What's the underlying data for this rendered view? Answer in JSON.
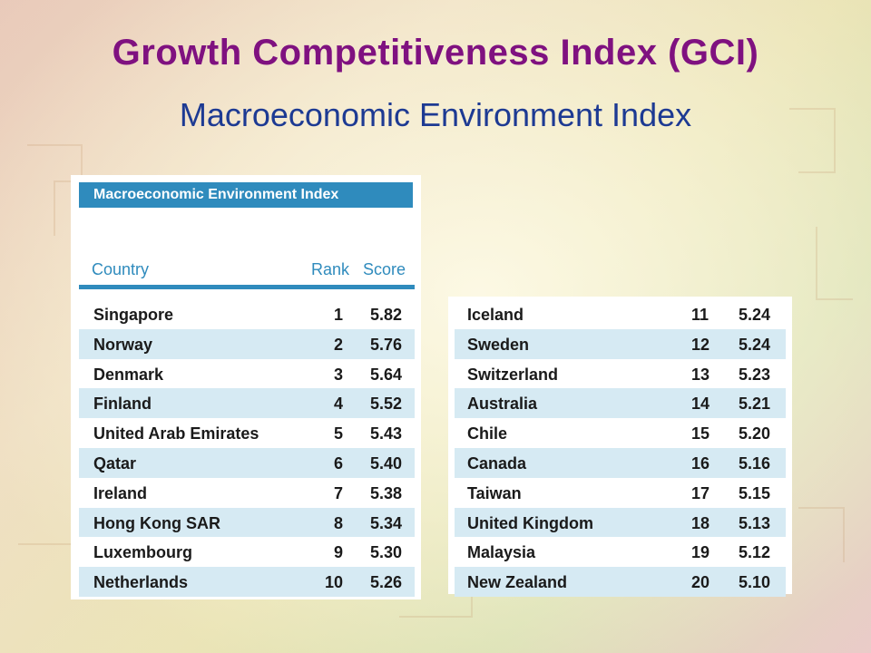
{
  "slide": {
    "title": "Growth Competitiveness Index (GCI)",
    "subtitle": "Macroeconomic Environment Index"
  },
  "table": {
    "header": "Macroeconomic Environment Index",
    "columns": [
      "Country",
      "Rank",
      "Score"
    ],
    "rows_left": [
      {
        "country": "Singapore",
        "rank": "1",
        "score": "5.82"
      },
      {
        "country": "Norway",
        "rank": "2",
        "score": "5.76"
      },
      {
        "country": "Denmark",
        "rank": "3",
        "score": "5.64"
      },
      {
        "country": "Finland",
        "rank": "4",
        "score": "5.52"
      },
      {
        "country": "United Arab Emirates",
        "rank": "5",
        "score": "5.43"
      },
      {
        "country": "Qatar",
        "rank": "6",
        "score": "5.40"
      },
      {
        "country": "Ireland",
        "rank": "7",
        "score": "5.38"
      },
      {
        "country": "Hong Kong SAR",
        "rank": "8",
        "score": "5.34"
      },
      {
        "country": "Luxembourg",
        "rank": "9",
        "score": "5.30"
      },
      {
        "country": "Netherlands",
        "rank": "10",
        "score": "5.26"
      }
    ],
    "rows_right": [
      {
        "country": "Iceland",
        "rank": "11",
        "score": "5.24"
      },
      {
        "country": "Sweden",
        "rank": "12",
        "score": "5.24"
      },
      {
        "country": "Switzerland",
        "rank": "13",
        "score": "5.23"
      },
      {
        "country": "Australia",
        "rank": "14",
        "score": "5.21"
      },
      {
        "country": "Chile",
        "rank": "15",
        "score": "5.20"
      },
      {
        "country": "Canada",
        "rank": "16",
        "score": "5.16"
      },
      {
        "country": "Taiwan",
        "rank": "17",
        "score": "5.15"
      },
      {
        "country": "United Kingdom",
        "rank": "18",
        "score": "5.13"
      },
      {
        "country": "Malaysia",
        "rank": "19",
        "score": "5.12"
      },
      {
        "country": "New Zealand",
        "rank": "20",
        "score": "5.10"
      }
    ]
  },
  "colors": {
    "title": "#7f1180",
    "subtitle": "#1d3a93",
    "table_accent": "#2f8bbd",
    "row_stripe": "#d6eaf3"
  }
}
